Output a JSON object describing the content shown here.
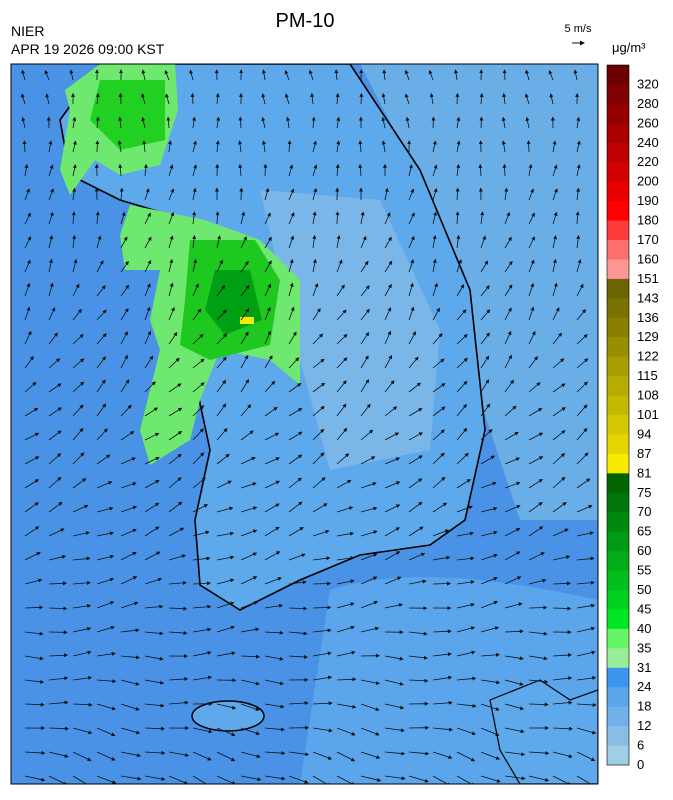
{
  "header": {
    "title": "PM-10",
    "agency": "NIER",
    "timestamp": "APR 19 2026 09:00 KST",
    "wind_scale": "5 m/s",
    "unit": "μg/m³"
  },
  "colorbar": {
    "labels": [
      320,
      280,
      260,
      240,
      220,
      200,
      190,
      180,
      170,
      160,
      151,
      143,
      136,
      129,
      122,
      115,
      108,
      101,
      94,
      87,
      81,
      75,
      70,
      65,
      60,
      55,
      50,
      45,
      40,
      35,
      31,
      24,
      18,
      12,
      6,
      0
    ],
    "colors": [
      "#6b0000",
      "#7f0000",
      "#940000",
      "#a80000",
      "#bd0000",
      "#d20000",
      "#e80000",
      "#ff0000",
      "#ff3c3c",
      "#ff6e6e",
      "#ff9696",
      "#6b6400",
      "#7a7200",
      "#898000",
      "#988e00",
      "#a79d00",
      "#b6ab00",
      "#c5b900",
      "#d4c800",
      "#e3d600",
      "#f5ea00",
      "#006400",
      "#00760a",
      "#00880f",
      "#009a14",
      "#00ac18",
      "#00be1c",
      "#00d020",
      "#00e624",
      "#66f566",
      "#99ee99",
      "#3a96ee",
      "#5aa5ec",
      "#71b0e8",
      "#88bde6",
      "#a2cde6"
    ]
  }
}
